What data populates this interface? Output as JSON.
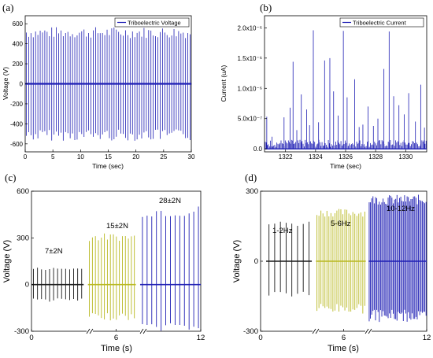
{
  "colors": {
    "blue": "#1f1fb4",
    "black": "#1a1a1a",
    "yellow": "#b8b820"
  },
  "panels": [
    {
      "letter": "(a)"
    },
    {
      "letter": "(b)"
    },
    {
      "letter": "(c)"
    },
    {
      "letter": "(d)"
    }
  ],
  "chart_data": [
    {
      "type": "line",
      "title": "",
      "xlabel": "Time (sec)",
      "ylabel": "Voltage (V)",
      "xlim": [
        0,
        30
      ],
      "ylim": [
        -680,
        680
      ],
      "xticks": [
        "0",
        "5",
        "10",
        "15",
        "20",
        "25",
        "30"
      ],
      "yticks": [
        "600",
        "400",
        "200",
        "0",
        "-200",
        "-400",
        "-600"
      ],
      "legend": "top-right",
      "series": [
        {
          "name": "Triboelectric Voltage",
          "color": "#1f1fb4",
          "cycles_per_sec": 2.4,
          "peak_pos": 570,
          "peak_neg": -570
        }
      ]
    },
    {
      "type": "line",
      "title": "",
      "xlabel": "Time (sec)",
      "ylabel": "Current (uA)",
      "xlim": [
        1320.6,
        1331.4
      ],
      "ylim": [
        -5e-08,
        2.2e-06
      ],
      "xticks": [
        "1322",
        "1324",
        "1326",
        "1328",
        "1330"
      ],
      "yticks": [
        "0.0",
        "5.0x10⁻⁷",
        "1.0x10⁻⁶",
        "1.5x10⁻⁶",
        "2.0x10⁻⁶"
      ],
      "legend": "top-right",
      "series": [
        {
          "name": "Triboelectric Current",
          "color": "#1f1fb4",
          "spikes": [
            [
              1320.75,
              5.3e-07
            ],
            [
              1321.1,
              2e-07
            ],
            [
              1321.9,
              5.2e-07
            ],
            [
              1322.3,
              6.8e-07
            ],
            [
              1322.5,
              1.44e-06
            ],
            [
              1322.75,
              3.1e-07
            ],
            [
              1323.05,
              9e-07
            ],
            [
              1323.4,
              6.5e-07
            ],
            [
              1323.6,
              3.9e-07
            ],
            [
              1323.85,
              1.96e-06
            ],
            [
              1324.2,
              4.4e-07
            ],
            [
              1324.6,
              1.46e-06
            ],
            [
              1324.95,
              1.5e-06
            ],
            [
              1325.2,
              9.5e-07
            ],
            [
              1325.5,
              5.5e-07
            ],
            [
              1325.85,
              1.95e-06
            ],
            [
              1326.1,
              8.5e-07
            ],
            [
              1326.6,
              1.15e-06
            ],
            [
              1326.9,
              3.6e-07
            ],
            [
              1327.15,
              4e-07
            ],
            [
              1327.5,
              7e-07
            ],
            [
              1327.85,
              3.8e-07
            ],
            [
              1328.15,
              5e-07
            ],
            [
              1328.55,
              1.32e-06
            ],
            [
              1328.9,
              1.94e-06
            ],
            [
              1329.2,
              8.7e-07
            ],
            [
              1329.55,
              7.2e-07
            ],
            [
              1329.9,
              5.7e-07
            ],
            [
              1330.2,
              9.2e-07
            ],
            [
              1330.65,
              4.5e-07
            ],
            [
              1331.0,
              1.06e-06
            ],
            [
              1331.25,
              3.5e-07
            ]
          ]
        }
      ]
    },
    {
      "type": "line",
      "title": "",
      "xlabel": "Time (s)",
      "ylabel": "Voltage (V)",
      "xlim": [
        0,
        12
      ],
      "ylim": [
        -300,
        600
      ],
      "xticks": [
        "0",
        "6",
        "12"
      ],
      "yticks": [
        "600",
        "300",
        "0",
        "-300"
      ],
      "annotations": [
        "7±2N",
        "15±2N",
        "28±2N"
      ],
      "segments": [
        {
          "label": "7±2N",
          "color": "#1a1a1a",
          "x": [
            0.0,
            3.7
          ],
          "count": 13,
          "peak_pos": 110,
          "peak_neg": -110
        },
        {
          "label": "15±2N",
          "color": "#b8b820",
          "x": [
            4.0,
            7.4
          ],
          "count": 16,
          "peak_pos": 330,
          "peak_neg": -230
        },
        {
          "label": "28±2N",
          "color": "#1f1fb4",
          "x": [
            7.7,
            12.0
          ],
          "count": 13,
          "peak_pos": 510,
          "peak_neg": -300
        }
      ]
    },
    {
      "type": "line",
      "title": "",
      "xlabel": "Time (s)",
      "ylabel": "Voltage (V)",
      "xlim": [
        0,
        12
      ],
      "ylim": [
        -300,
        300
      ],
      "xticks": [
        "0",
        "6",
        "12"
      ],
      "yticks": [
        "300",
        "0",
        "-300"
      ],
      "annotations": [
        "1-2Hz",
        "5-6Hz",
        "10-12Hz"
      ],
      "segments": [
        {
          "label": "1-2Hz",
          "color": "#1a1a1a",
          "x": [
            0.4,
            3.7
          ],
          "count": 8,
          "peak_pos": 175,
          "peak_neg": -155
        },
        {
          "label": "5-6Hz",
          "color": "#b8b820",
          "x": [
            4.0,
            7.6
          ],
          "count": 25,
          "peak_pos": 225,
          "peak_neg": -225
        },
        {
          "label": "10-12Hz",
          "color": "#1f1fb4",
          "x": [
            7.8,
            12.0
          ],
          "count": 46,
          "peak_pos": 285,
          "peak_neg": -260
        }
      ]
    }
  ]
}
